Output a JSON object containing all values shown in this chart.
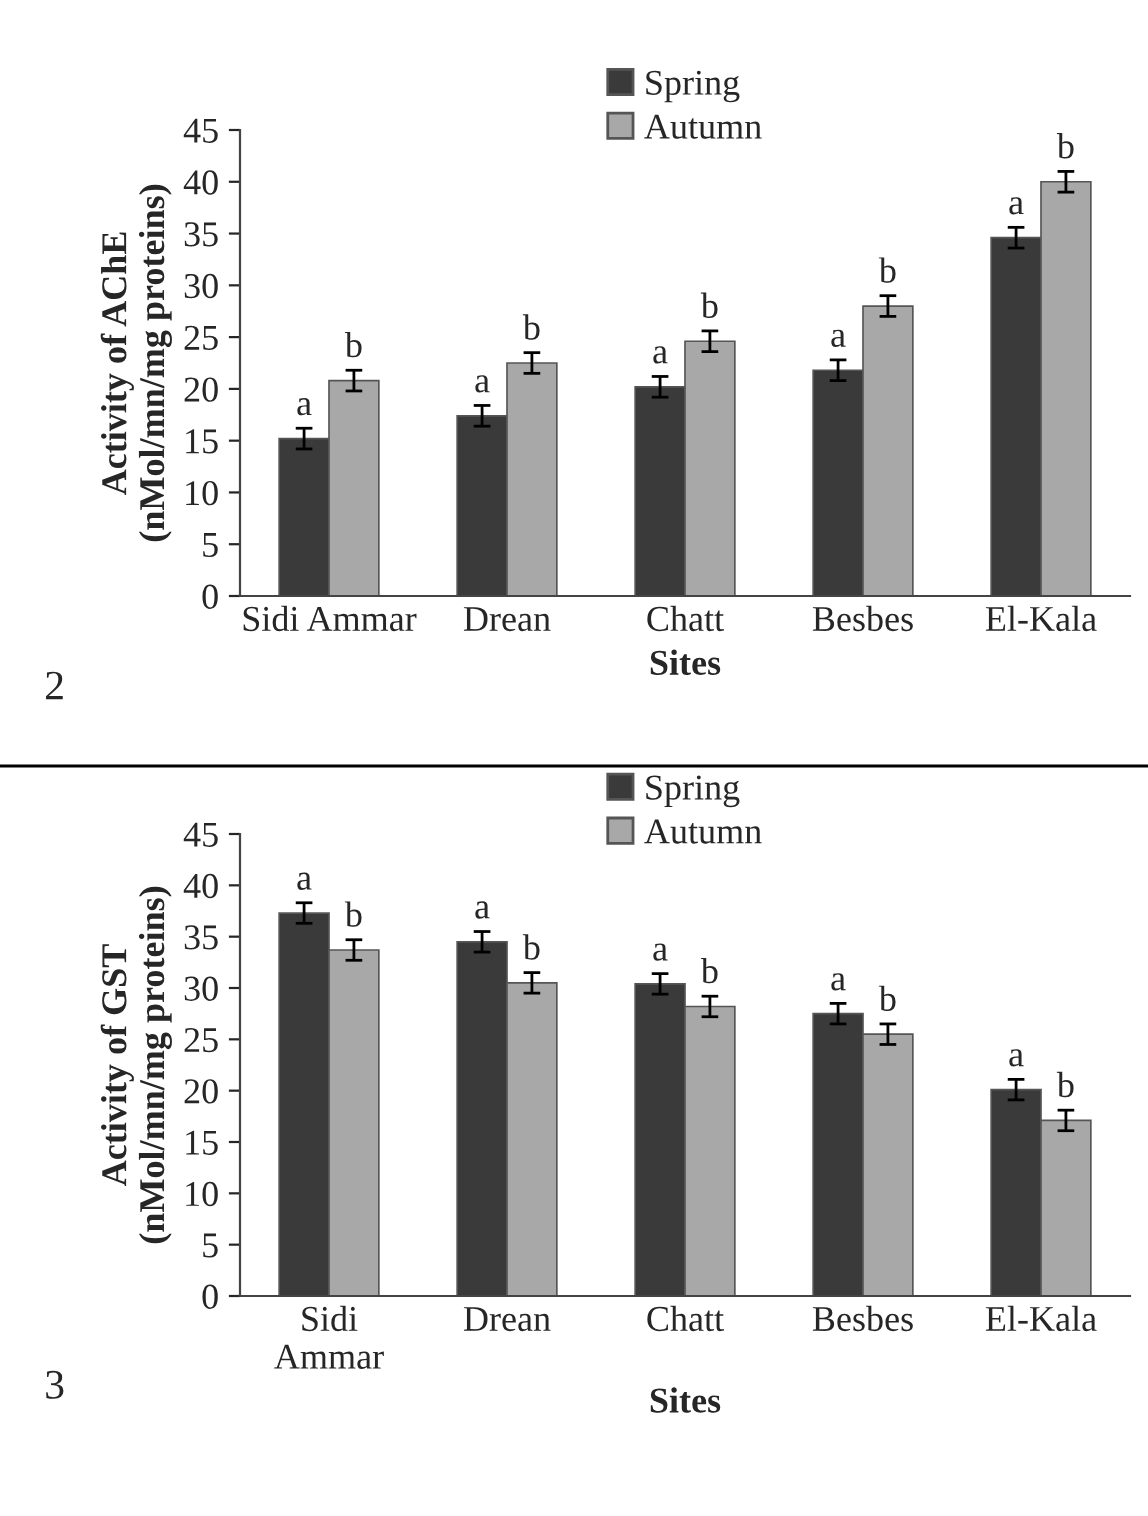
{
  "chart_data": [
    {
      "type": "bar",
      "ylabel": "Activity of AChE\n(nMol/mn/mg proteins)",
      "xlabel": "Sites",
      "categories": [
        "Sidi Ammar",
        "Drean",
        "Chatt",
        "Besbes",
        "El-Kala"
      ],
      "series": [
        {
          "name": "Spring",
          "color": "#3a3a3a",
          "values": [
            15.2,
            17.4,
            20.2,
            21.8,
            34.6
          ],
          "errors": [
            1,
            1,
            1,
            1,
            1
          ],
          "value_labels": [
            "a",
            "a",
            "a",
            "a",
            "a"
          ]
        },
        {
          "name": "Autumn",
          "color": "#a8a8a8",
          "values": [
            20.8,
            22.5,
            24.6,
            28.0,
            40.0
          ],
          "errors": [
            1,
            1,
            1,
            1,
            1
          ],
          "value_labels": [
            "b",
            "b",
            "b",
            "b",
            "b"
          ]
        }
      ],
      "ylim": [
        0,
        45
      ],
      "yticks": [
        0,
        5,
        10,
        15,
        20,
        25,
        30,
        35,
        40,
        45
      ],
      "legend": "top",
      "annotations": [
        "2"
      ]
    },
    {
      "type": "bar",
      "ylabel": "Activity of GST\n(nMol/mn/mg proteins)",
      "xlabel": "Sites",
      "categories": [
        "Sidi\nAmmar",
        "Drean",
        "Chatt",
        "Besbes",
        "El-Kala"
      ],
      "series": [
        {
          "name": "Spring",
          "color": "#3a3a3a",
          "values": [
            37.3,
            34.5,
            30.4,
            27.5,
            20.1
          ],
          "errors": [
            1,
            1,
            1,
            1,
            1
          ],
          "value_labels": [
            "a",
            "a",
            "a",
            "a",
            "a"
          ]
        },
        {
          "name": "Autumn",
          "color": "#a8a8a8",
          "values": [
            33.7,
            30.5,
            28.2,
            25.5,
            17.1
          ],
          "errors": [
            1,
            1,
            1,
            1,
            1
          ],
          "value_labels": [
            "b",
            "b",
            "b",
            "b",
            "b"
          ]
        }
      ],
      "ylim": [
        0,
        45
      ],
      "yticks": [
        0,
        5,
        10,
        15,
        20,
        25,
        30,
        35,
        40,
        45
      ],
      "legend": "top",
      "annotations": [
        "3"
      ]
    }
  ]
}
